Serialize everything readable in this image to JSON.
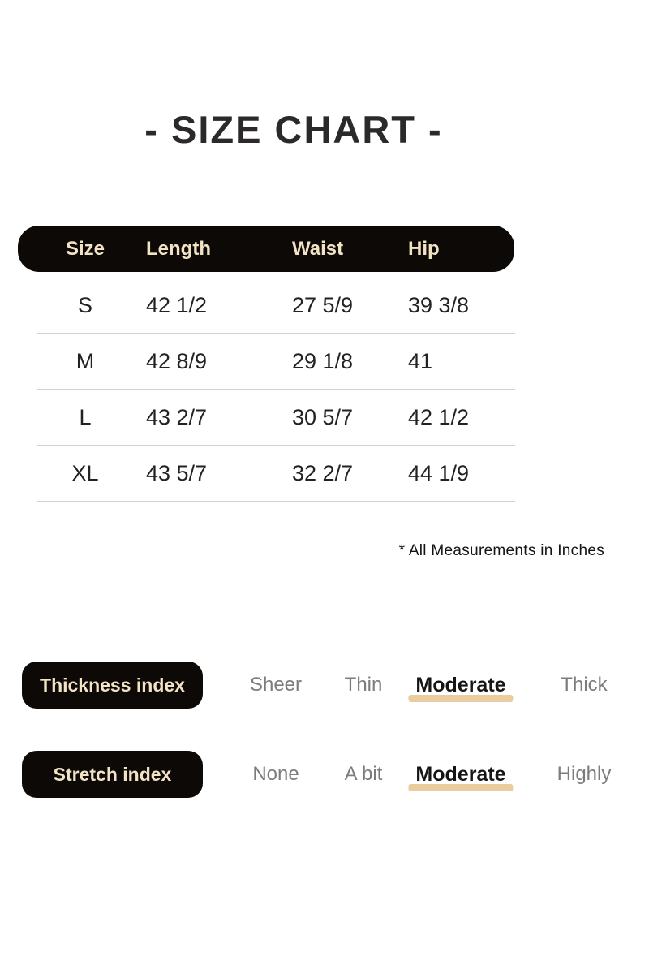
{
  "title": "- SIZE CHART -",
  "table": {
    "headers": [
      "Size",
      "Length",
      "Waist",
      "Hip"
    ],
    "rows": [
      {
        "size": "S",
        "length": "42 1/2",
        "waist": "27 5/9",
        "hip": "39 3/8"
      },
      {
        "size": "M",
        "length": "42 8/9",
        "waist": "29 1/8",
        "hip": "41"
      },
      {
        "size": "L",
        "length": "43 2/7",
        "waist": "30 5/7",
        "hip": "42 1/2"
      },
      {
        "size": "XL",
        "length": "43 5/7",
        "waist": "32 2/7",
        "hip": "44 1/9"
      }
    ]
  },
  "footnote": "* All Measurements in Inches",
  "indexes": [
    {
      "label": "Thickness index",
      "options": [
        "Sheer",
        "Thin",
        "Moderate",
        "Thick"
      ],
      "selected": "Moderate"
    },
    {
      "label": "Stretch index",
      "options": [
        "None",
        "A bit",
        "Moderate",
        "Highly"
      ],
      "selected": "Moderate"
    }
  ],
  "colors": {
    "pill_background": "#0c0907",
    "pill_text": "#f2e3c4",
    "selected_underline": "#e9cd9e",
    "option_gray": "#7c7c7c",
    "text_dark": "#232222",
    "divider_gray": "#d2d2d2",
    "page_background": "#ffffff"
  },
  "chart_data": {
    "type": "table",
    "title": "- SIZE CHART -",
    "columns": [
      "Size",
      "Length",
      "Waist",
      "Hip"
    ],
    "rows": [
      [
        "S",
        "42 1/2",
        "27 5/9",
        "39 3/8"
      ],
      [
        "M",
        "42 8/9",
        "29 1/8",
        "41"
      ],
      [
        "L",
        "43 2/7",
        "30 5/7",
        "42 1/2"
      ],
      [
        "XL",
        "43 5/7",
        "32 2/7",
        "44 1/9"
      ]
    ],
    "units": "Inches",
    "footnote": "* All Measurements in Inches",
    "thickness_scale": {
      "options": [
        "Sheer",
        "Thin",
        "Moderate",
        "Thick"
      ],
      "value": "Moderate"
    },
    "stretch_scale": {
      "options": [
        "None",
        "A bit",
        "Moderate",
        "Highly"
      ],
      "value": "Moderate"
    }
  }
}
